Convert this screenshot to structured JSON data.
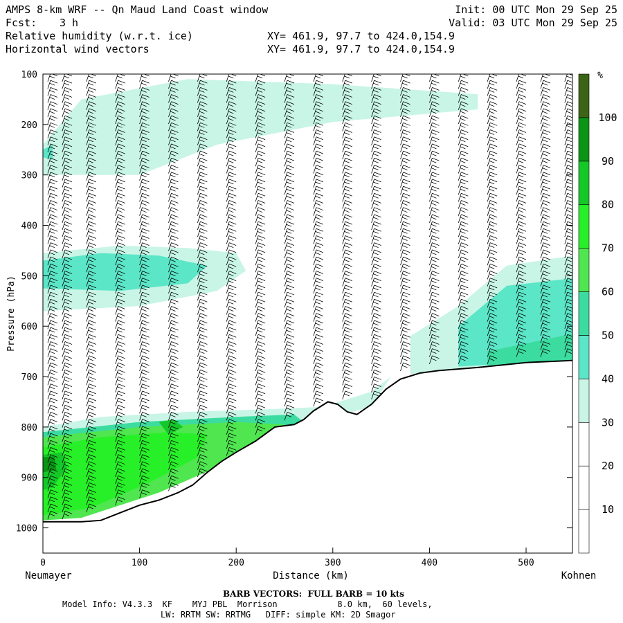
{
  "header": {
    "title": "AMPS 8-km WRF -- Qn Maud Land Coast window",
    "fcst_label": "Fcst:",
    "fcst_value": "3 h",
    "field1": "Relative humidity (w.r.t. ice)",
    "field2": "Horizontal wind vectors",
    "xy1": "XY= 461.9, 97.7 to 424.0,154.9",
    "xy2": "XY= 461.9, 97.7 to 424.0,154.9",
    "init": "Init: 00 UTC Mon 29 Sep 25",
    "valid": "Valid: 03 UTC Mon 29 Sep 25"
  },
  "footer": {
    "barb_note": "BARB VECTORS:  FULL BARB = 10 kts",
    "model_line1": "Model Info: V4.3.3  KF    MYJ PBL  Morrison            8.0 km,  60 levels,",
    "model_line2": "LW: RRTM SW: RRTMG   DIFF: simple KM: 2D Smagor"
  },
  "chart_data": {
    "type": "heatmap",
    "title": "Relative humidity (w.r.t. ice) cross-section with horizontal wind barbs",
    "xlabel": "Distance (km)",
    "ylabel": "Pressure (hPa)",
    "xlim": [
      0,
      548
    ],
    "ylim": [
      1050,
      100
    ],
    "x_ticks": [
      0,
      100,
      200,
      300,
      400,
      500
    ],
    "y_ticks": [
      100,
      200,
      300,
      400,
      500,
      600,
      700,
      800,
      900,
      1000
    ],
    "x_start_label": "Neumayer",
    "x_end_label": "Kohnen",
    "colorbar": {
      "unit": "%",
      "levels": [
        10,
        20,
        30,
        40,
        50,
        60,
        70,
        80,
        90,
        100
      ],
      "colors": [
        "#ffffff",
        "#ffffff",
        "#ffffff",
        "#c8f5e6",
        "#5ce6c8",
        "#3cdca0",
        "#50e650",
        "#28f028",
        "#14c828",
        "#0a9614",
        "#3c6414"
      ]
    },
    "terrain": [
      {
        "x": 0,
        "p": 988
      },
      {
        "x": 40,
        "p": 988
      },
      {
        "x": 60,
        "p": 985
      },
      {
        "x": 80,
        "p": 970
      },
      {
        "x": 100,
        "p": 955
      },
      {
        "x": 120,
        "p": 945
      },
      {
        "x": 140,
        "p": 930
      },
      {
        "x": 155,
        "p": 915
      },
      {
        "x": 170,
        "p": 890
      },
      {
        "x": 185,
        "p": 868
      },
      {
        "x": 200,
        "p": 850
      },
      {
        "x": 220,
        "p": 828
      },
      {
        "x": 240,
        "p": 800
      },
      {
        "x": 260,
        "p": 795
      },
      {
        "x": 270,
        "p": 785
      },
      {
        "x": 280,
        "p": 768
      },
      {
        "x": 295,
        "p": 750
      },
      {
        "x": 305,
        "p": 755
      },
      {
        "x": 315,
        "p": 770
      },
      {
        "x": 325,
        "p": 775
      },
      {
        "x": 340,
        "p": 755
      },
      {
        "x": 355,
        "p": 725
      },
      {
        "x": 370,
        "p": 705
      },
      {
        "x": 390,
        "p": 693
      },
      {
        "x": 410,
        "p": 688
      },
      {
        "x": 450,
        "p": 682
      },
      {
        "x": 500,
        "p": 672
      },
      {
        "x": 548,
        "p": 668
      }
    ],
    "rh_regions": [
      {
        "level": "30-40",
        "points": [
          [
            0,
            240
          ],
          [
            40,
            150
          ],
          [
            150,
            110
          ],
          [
            300,
            120
          ],
          [
            450,
            140
          ],
          [
            450,
            170
          ],
          [
            300,
            195
          ],
          [
            180,
            240
          ],
          [
            100,
            300
          ],
          [
            0,
            300
          ]
        ]
      },
      {
        "level": "40-50",
        "points": [
          [
            0,
            250
          ],
          [
            10,
            240
          ],
          [
            10,
            270
          ],
          [
            0,
            265
          ]
        ]
      },
      {
        "level": "30-40",
        "points": [
          [
            0,
            455
          ],
          [
            80,
            440
          ],
          [
            150,
            445
          ],
          [
            200,
            455
          ],
          [
            210,
            490
          ],
          [
            180,
            530
          ],
          [
            100,
            560
          ],
          [
            0,
            570
          ]
        ]
      },
      {
        "level": "40-50",
        "points": [
          [
            0,
            470
          ],
          [
            60,
            455
          ],
          [
            120,
            460
          ],
          [
            170,
            480
          ],
          [
            150,
            515
          ],
          [
            80,
            530
          ],
          [
            0,
            525
          ]
        ]
      },
      {
        "level": "30-40",
        "points": [
          [
            380,
            620
          ],
          [
            430,
            560
          ],
          [
            480,
            480
          ],
          [
            548,
            460
          ],
          [
            548,
            668
          ],
          [
            380,
            695
          ]
        ]
      },
      {
        "level": "40-50",
        "points": [
          [
            430,
            600
          ],
          [
            480,
            520
          ],
          [
            548,
            505
          ],
          [
            548,
            668
          ],
          [
            430,
            680
          ]
        ]
      },
      {
        "level": "50-60",
        "points": [
          [
            460,
            650
          ],
          [
            548,
            615
          ],
          [
            548,
            668
          ],
          [
            460,
            678
          ]
        ]
      },
      {
        "level": "30-40",
        "points": [
          [
            0,
            800
          ],
          [
            60,
            780
          ],
          [
            150,
            770
          ],
          [
            230,
            765
          ],
          [
            290,
            760
          ],
          [
            340,
            730
          ],
          [
            360,
            700
          ],
          [
            340,
            760
          ],
          [
            300,
            780
          ],
          [
            200,
            800
          ],
          [
            100,
            815
          ],
          [
            0,
            830
          ]
        ]
      },
      {
        "level": "50-60",
        "points": [
          [
            0,
            810
          ],
          [
            100,
            790
          ],
          [
            200,
            780
          ],
          [
            260,
            775
          ],
          [
            270,
            790
          ],
          [
            200,
            820
          ],
          [
            100,
            830
          ],
          [
            0,
            840
          ]
        ]
      },
      {
        "level": "60-70",
        "points": [
          [
            0,
            820
          ],
          [
            100,
            800
          ],
          [
            200,
            790
          ],
          [
            250,
            795
          ],
          [
            240,
            830
          ],
          [
            180,
            880
          ],
          [
            120,
            930
          ],
          [
            40,
            980
          ],
          [
            0,
            985
          ]
        ]
      },
      {
        "level": "70-80",
        "points": [
          [
            0,
            840
          ],
          [
            60,
            820
          ],
          [
            130,
            810
          ],
          [
            170,
            815
          ],
          [
            160,
            860
          ],
          [
            110,
            910
          ],
          [
            50,
            960
          ],
          [
            0,
            975
          ]
        ]
      },
      {
        "level": "80-90",
        "points": [
          [
            0,
            855
          ],
          [
            20,
            850
          ],
          [
            25,
            880
          ],
          [
            10,
            920
          ],
          [
            0,
            925
          ]
        ]
      },
      {
        "level": "80-90",
        "points": [
          [
            120,
            790
          ],
          [
            135,
            785
          ],
          [
            145,
            800
          ],
          [
            130,
            815
          ]
        ]
      },
      {
        "level": "90-100",
        "points": [
          [
            0,
            860
          ],
          [
            12,
            858
          ],
          [
            14,
            885
          ],
          [
            0,
            890
          ]
        ]
      }
    ],
    "wind_barb_columns_km": [
      5,
      20,
      45,
      75,
      100,
      130,
      160,
      190,
      220,
      250,
      280,
      310,
      340,
      370,
      400,
      430,
      460,
      490,
      515,
      540
    ]
  }
}
